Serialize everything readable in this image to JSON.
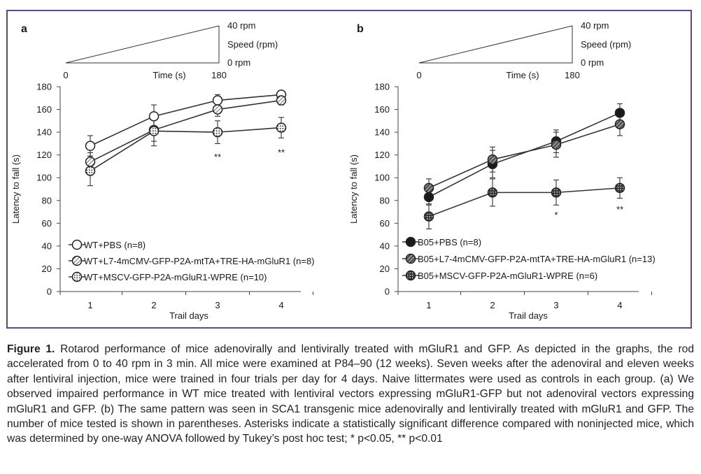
{
  "colors": {
    "frame": "#5b4a8a",
    "line": "#333333",
    "text": "#1a1a1a"
  },
  "speed_schematic": {
    "top_label": "40 rpm",
    "mid_label": "Speed (rpm)",
    "bottom_label": "0 rpm",
    "x_start": "0",
    "x_label": "Time (s)",
    "x_end": "180"
  },
  "chart_data": [
    {
      "panel_label": "a",
      "type": "line",
      "xlabel": "Trail days",
      "ylabel": "Latency to fall (s)",
      "ylim": [
        0,
        180
      ],
      "yticks": [
        0,
        20,
        40,
        60,
        80,
        100,
        120,
        140,
        160,
        180
      ],
      "x": [
        1,
        2,
        3,
        4
      ],
      "x_tick_labels": [
        "1",
        "2",
        "3",
        "4"
      ],
      "legend_position": "bottom-left",
      "series": [
        {
          "name": "WT+PBS (n=8)",
          "marker": "open",
          "values": [
            128,
            154,
            168,
            173
          ],
          "errors": [
            9,
            10,
            5,
            3
          ]
        },
        {
          "name": "WT+L7-4mCMV-GFP-P2A-mtTA+TRE-HA-mGluR1 (n=8)",
          "marker": "hatched",
          "values": [
            114,
            142,
            160,
            168
          ],
          "errors": [
            8,
            10,
            6,
            4
          ]
        },
        {
          "name": "WT+MSCV-GFP-P2A-mGluR1-WPRE (n=10)",
          "marker": "dotted",
          "values": [
            106,
            141,
            140,
            144
          ],
          "errors": [
            13,
            13,
            10,
            9
          ]
        }
      ],
      "annotations": [
        {
          "x": 3,
          "y": 118,
          "text": "**"
        },
        {
          "x": 4,
          "y": 122,
          "text": "**"
        }
      ]
    },
    {
      "panel_label": "b",
      "type": "line",
      "xlabel": "Trail days",
      "ylabel": "Latency to fall (s)",
      "ylim": [
        0,
        180
      ],
      "yticks": [
        0,
        20,
        40,
        60,
        80,
        100,
        120,
        140,
        160,
        180
      ],
      "x": [
        1,
        2,
        3,
        4
      ],
      "x_tick_labels": [
        "1",
        "2",
        "3",
        "4"
      ],
      "legend_position": "bottom-left",
      "series": [
        {
          "name": "B05+PBS (n=8)",
          "marker": "filled",
          "values": [
            83,
            112,
            132,
            157
          ],
          "errors": [
            7,
            12,
            10,
            8
          ]
        },
        {
          "name": "B05+L7-4mCMV-GFP-P2A-mtTA+TRE-HA-mGluR1 (n=13)",
          "marker": "hatched-dark",
          "values": [
            91,
            116,
            129,
            147
          ],
          "errors": [
            8,
            11,
            11,
            10
          ]
        },
        {
          "name": "B05+MSCV-GFP-P2A-mGluR1-WPRE (n=6)",
          "marker": "dotted-dark",
          "values": [
            66,
            87,
            87,
            91
          ],
          "errors": [
            11,
            12,
            11,
            9
          ]
        }
      ],
      "annotations": [
        {
          "x": 3,
          "y": 67,
          "text": "*"
        },
        {
          "x": 4,
          "y": 72,
          "text": "**"
        }
      ]
    }
  ],
  "caption": {
    "label": "Figure 1.",
    "text": " Rotarod performance of mice adenovirally and lentivirally treated with mGluR1 and GFP. As depicted in the graphs, the rod accelerated from 0 to 40 rpm in 3 min. All mice were examined at P84–90 (12 weeks). Seven weeks after the adenoviral and eleven weeks after lentiviral injection, mice were trained in four trials per day for 4 days. Naive littermates were used as controls in each group. (a) We observed impaired performance in WT mice treated with lentiviral vectors expressing mGluR1-GFP but not adenoviral vectors expressing mGluR1 and GFP. (b) The same pattern was seen in SCA1 transgenic mice adenovirally and lentivirally treated with mGluR1 and GFP. The number of mice tested is shown in parentheses. Asterisks indicate a statistically significant difference compared with noninjected mice, which was determined by one-way ANOVA followed by Tukey’s post hoc test; * p<0.05, ** p<0.01"
  }
}
